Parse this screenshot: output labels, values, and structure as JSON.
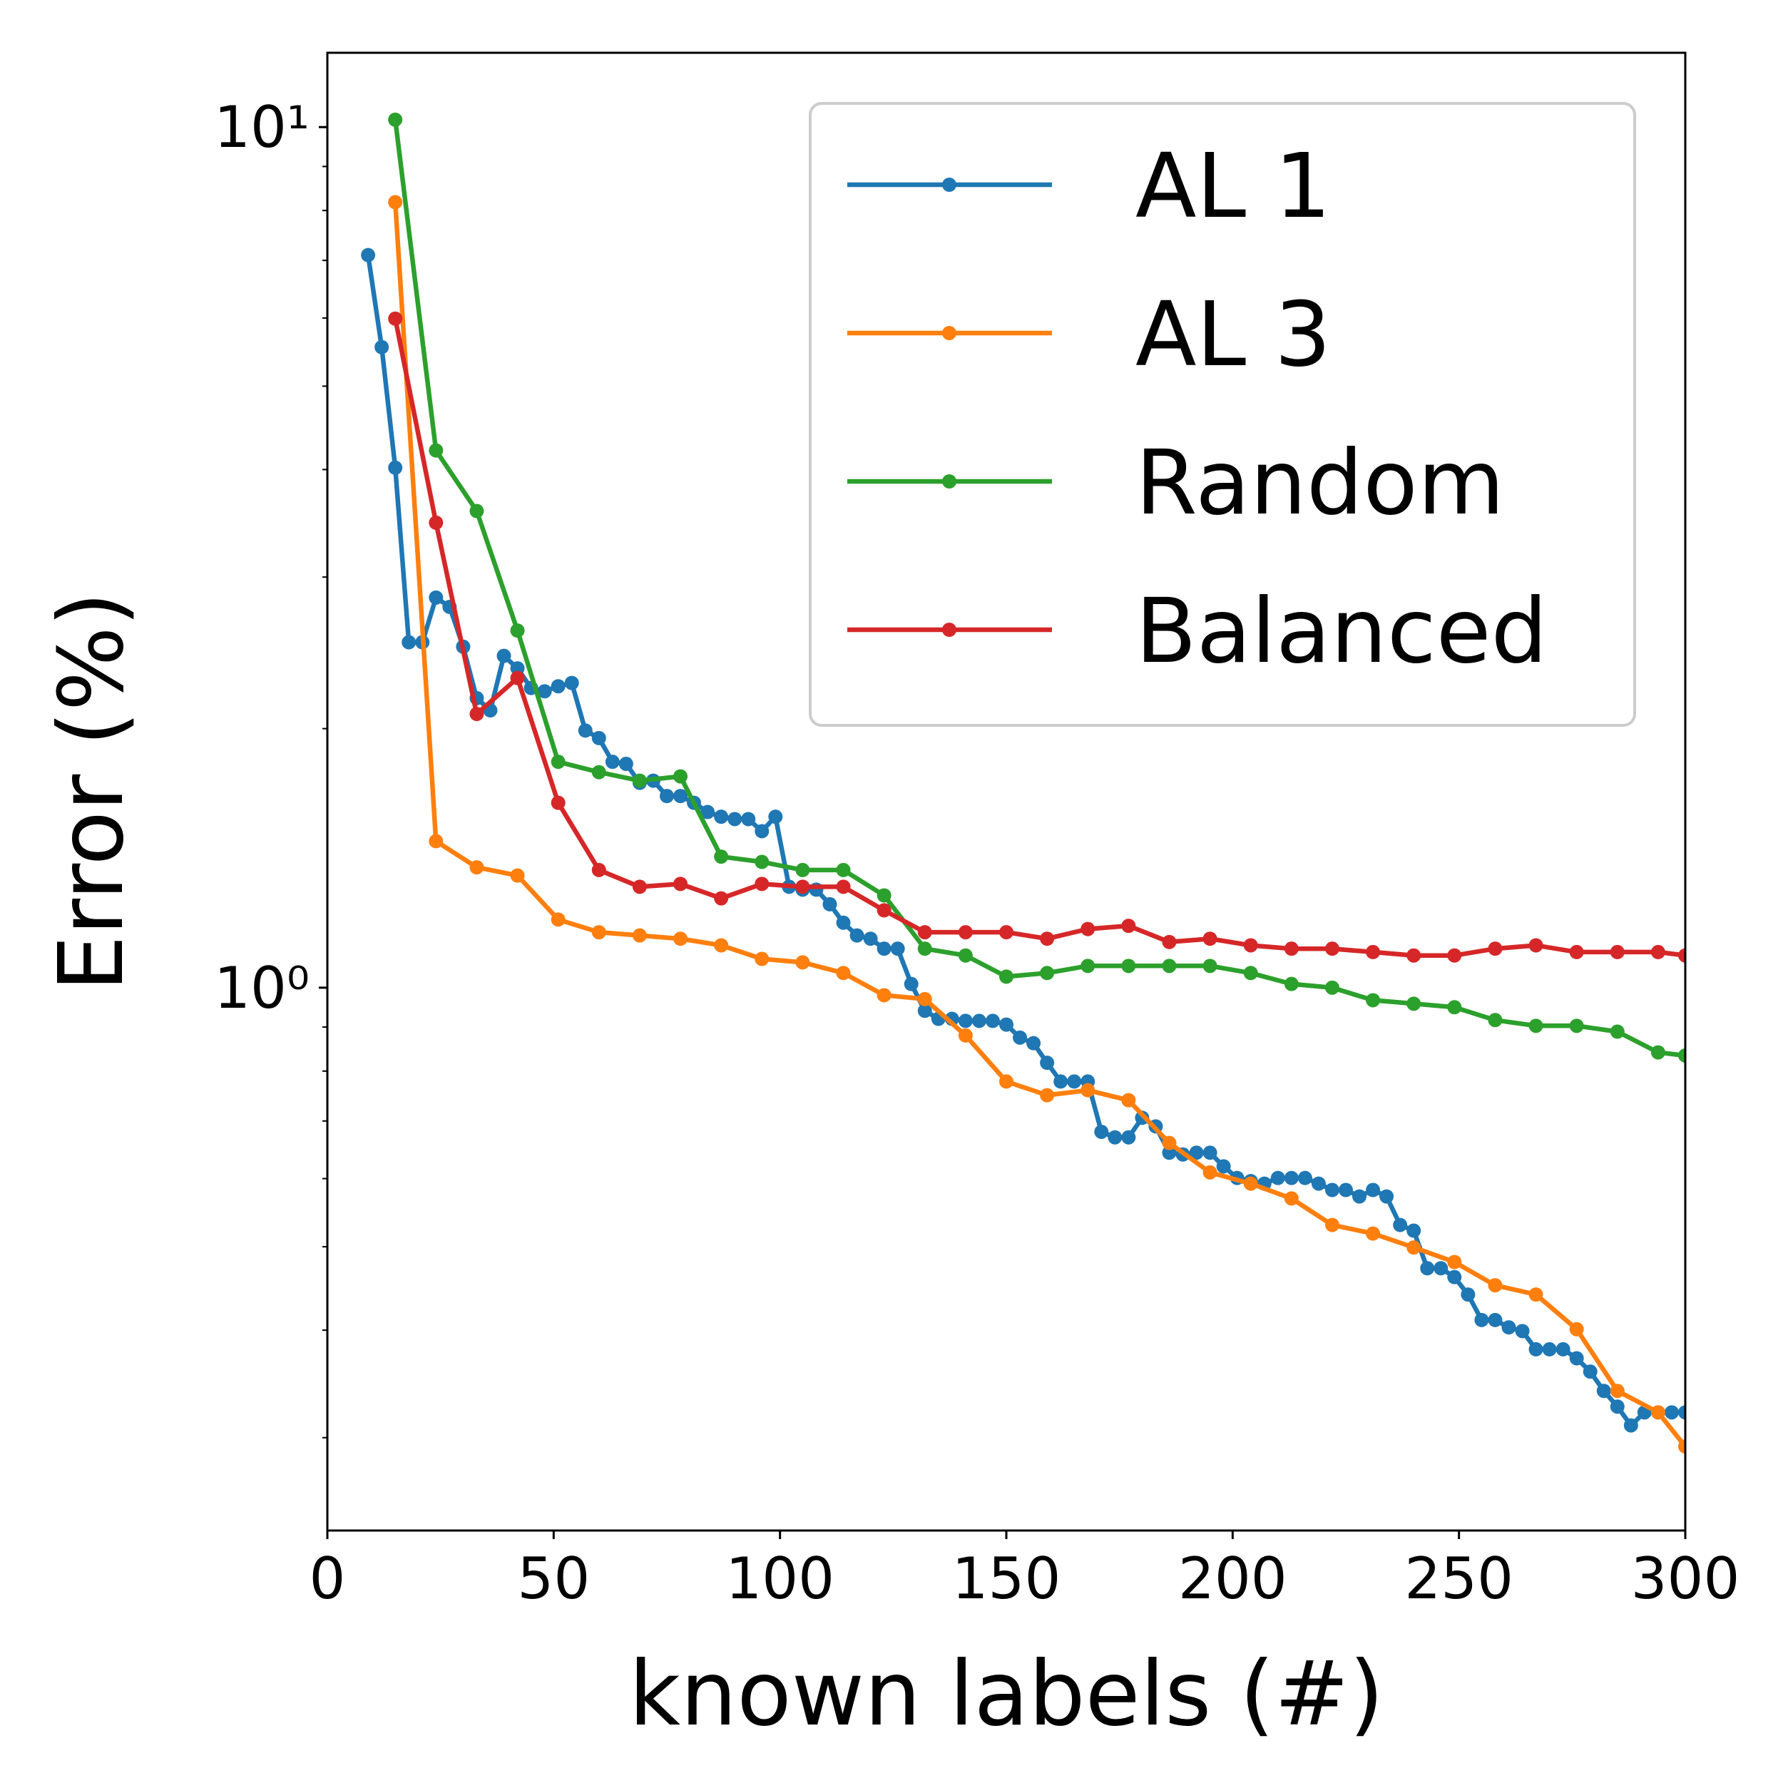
{
  "chart_data": {
    "type": "line",
    "xlabel": "known labels (#)",
    "ylabel": "Error (%)",
    "xlim": [
      0,
      300
    ],
    "xticks": [
      0,
      50,
      100,
      150,
      200,
      250,
      300
    ],
    "yscale": "log",
    "ylim": [
      0.234,
      12.2
    ],
    "yticks": [
      {
        "value": 1,
        "label": "10⁰"
      },
      {
        "value": 10,
        "label": "10¹"
      }
    ],
    "yminorticks": [
      0.3,
      0.4,
      0.5,
      0.6,
      0.7,
      0.8,
      0.9,
      2,
      3,
      4,
      5,
      6,
      7,
      8,
      9
    ],
    "legend": "upper right",
    "series": [
      {
        "name": "AL 1",
        "color": "#1f77b4",
        "x": [
          9,
          12,
          15,
          18,
          21,
          24,
          27,
          30,
          33,
          36,
          39,
          42,
          45,
          48,
          51,
          54,
          57,
          60,
          63,
          66,
          69,
          72,
          75,
          78,
          81,
          84,
          87,
          90,
          93,
          96,
          99,
          102,
          105,
          108,
          111,
          114,
          117,
          120,
          123,
          126,
          129,
          132,
          135,
          138,
          141,
          144,
          147,
          150,
          153,
          156,
          159,
          162,
          165,
          168,
          171,
          174,
          177,
          180,
          183,
          186,
          189,
          192,
          195,
          198,
          201,
          204,
          207,
          210,
          213,
          216,
          219,
          222,
          225,
          228,
          231,
          234,
          237,
          240,
          243,
          246,
          249,
          252,
          255,
          258,
          261,
          264,
          267,
          270,
          273,
          276,
          279,
          282,
          285,
          288,
          291,
          294,
          297,
          300
        ],
        "values": [
          7.1,
          5.55,
          4.02,
          2.52,
          2.52,
          2.84,
          2.77,
          2.49,
          2.17,
          2.1,
          2.43,
          2.35,
          2.23,
          2.21,
          2.24,
          2.26,
          1.99,
          1.95,
          1.83,
          1.82,
          1.73,
          1.74,
          1.67,
          1.67,
          1.64,
          1.6,
          1.58,
          1.57,
          1.57,
          1.52,
          1.58,
          1.31,
          1.3,
          1.3,
          1.25,
          1.19,
          1.15,
          1.14,
          1.11,
          1.11,
          1.01,
          0.94,
          0.92,
          0.92,
          0.915,
          0.915,
          0.915,
          0.906,
          0.875,
          0.862,
          0.818,
          0.778,
          0.778,
          0.778,
          0.68,
          0.67,
          0.67,
          0.706,
          0.69,
          0.643,
          0.64,
          0.643,
          0.643,
          0.62,
          0.601,
          0.596,
          0.592,
          0.601,
          0.601,
          0.601,
          0.592,
          0.582,
          0.582,
          0.572,
          0.582,
          0.572,
          0.53,
          0.522,
          0.472,
          0.472,
          0.461,
          0.44,
          0.411,
          0.411,
          0.403,
          0.399,
          0.38,
          0.38,
          0.38,
          0.371,
          0.358,
          0.34,
          0.326,
          0.31,
          0.321,
          0.321,
          0.321,
          0.321
        ]
      },
      {
        "name": "AL 3",
        "color": "#ff7f0e",
        "x": [
          15,
          24,
          33,
          42,
          51,
          60,
          69,
          78,
          87,
          96,
          105,
          114,
          123,
          132,
          141,
          150,
          159,
          168,
          177,
          186,
          195,
          204,
          213,
          222,
          231,
          240,
          249,
          258,
          267,
          276,
          285,
          294,
          300
        ],
        "values": [
          8.18,
          1.48,
          1.38,
          1.35,
          1.2,
          1.16,
          1.15,
          1.14,
          1.12,
          1.08,
          1.07,
          1.04,
          0.98,
          0.97,
          0.88,
          0.778,
          0.75,
          0.76,
          0.74,
          0.66,
          0.61,
          0.592,
          0.569,
          0.53,
          0.518,
          0.499,
          0.48,
          0.451,
          0.44,
          0.401,
          0.34,
          0.321,
          0.293
        ]
      },
      {
        "name": "Random",
        "color": "#2ca02c",
        "x": [
          15,
          24,
          33,
          42,
          51,
          60,
          69,
          78,
          87,
          96,
          105,
          114,
          123,
          132,
          141,
          150,
          159,
          168,
          177,
          186,
          195,
          204,
          213,
          222,
          231,
          240,
          249,
          258,
          267,
          276,
          285,
          294,
          300
        ],
        "values": [
          10.2,
          4.21,
          3.58,
          2.6,
          1.83,
          1.78,
          1.74,
          1.76,
          1.42,
          1.4,
          1.37,
          1.37,
          1.28,
          1.11,
          1.09,
          1.03,
          1.04,
          1.06,
          1.06,
          1.06,
          1.06,
          1.04,
          1.01,
          1.0,
          0.967,
          0.958,
          0.949,
          0.917,
          0.903,
          0.903,
          0.889,
          0.841,
          0.834
        ]
      },
      {
        "name": "Balanced",
        "color": "#d62728",
        "x": [
          15,
          24,
          33,
          42,
          51,
          60,
          69,
          78,
          87,
          96,
          105,
          114,
          123,
          132,
          141,
          150,
          159,
          168,
          177,
          186,
          195,
          204,
          213,
          222,
          231,
          240,
          249,
          258,
          267,
          276,
          285,
          294,
          300
        ],
        "values": [
          5.99,
          3.47,
          2.08,
          2.29,
          1.64,
          1.37,
          1.31,
          1.32,
          1.27,
          1.32,
          1.31,
          1.31,
          1.23,
          1.16,
          1.16,
          1.16,
          1.14,
          1.17,
          1.18,
          1.13,
          1.14,
          1.12,
          1.11,
          1.11,
          1.1,
          1.09,
          1.09,
          1.11,
          1.12,
          1.1,
          1.1,
          1.1,
          1.09
        ]
      }
    ]
  }
}
